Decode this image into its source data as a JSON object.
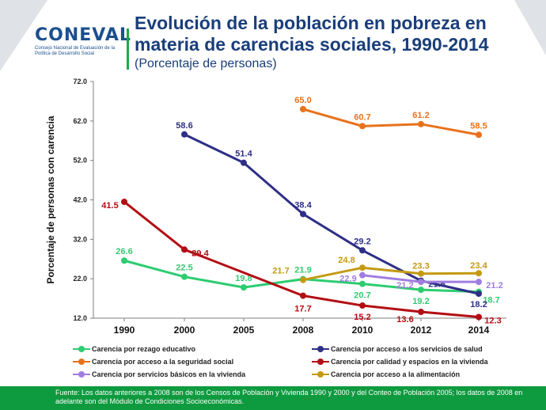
{
  "header": {
    "logo_text": "CONEVAL",
    "logo_subtitle": "Consejo Nacional de Evaluación de la Política de Desarrollo Social",
    "title": "Evolución de la población en pobreza en materia de carencias sociales, 1990-2014",
    "subtitle": "(Porcentaje de personas)"
  },
  "chart_data": {
    "type": "line",
    "title": "Evolución de la población en pobreza en materia de carencias sociales, 1990-2014",
    "subtitle": "(Porcentaje de personas)",
    "xlabel": "",
    "ylabel": "Porcentaje de personas con carencia",
    "categories": [
      "1990",
      "2000",
      "2005",
      "2008",
      "2010",
      "2012",
      "2014"
    ],
    "ylim": [
      12.0,
      72.0
    ],
    "yticks": [
      "12.0",
      "22.0",
      "32.0",
      "42.0",
      "52.0",
      "62.0",
      "72.0"
    ],
    "grid": false,
    "legend_position": "bottom",
    "series": [
      {
        "name": "Carencia por rezago educativo",
        "color": "#2ecc71",
        "values": [
          26.6,
          22.5,
          19.8,
          21.9,
          20.7,
          19.2,
          18.7
        ],
        "labels": [
          "26.6",
          "22.5",
          "19.8",
          "21.9",
          "20.7",
          "19.2",
          "18.7"
        ]
      },
      {
        "name": "Carencia por acceso a los servicios de salud",
        "color": "#2e2f86",
        "values": [
          null,
          58.6,
          51.4,
          38.4,
          29.2,
          21.5,
          18.2
        ],
        "labels": [
          null,
          "58.6",
          "51.4",
          "38.4",
          "29.2",
          "21.5",
          "18.2"
        ]
      },
      {
        "name": "Carencia por acceso a la seguridad social",
        "color": "#e8721c",
        "values": [
          null,
          null,
          null,
          65.0,
          60.7,
          61.2,
          58.5
        ],
        "labels": [
          null,
          null,
          null,
          "65.0",
          "60.7",
          "61.2",
          "58.5"
        ]
      },
      {
        "name": "Carencia por calidad y espacios en la vivienda",
        "color": "#b30d14",
        "values": [
          41.5,
          29.4,
          null,
          17.7,
          15.2,
          13.6,
          12.3
        ],
        "labels": [
          "41.5",
          "29.4",
          null,
          "17.7",
          "15.2",
          "13.6",
          "12.3"
        ]
      },
      {
        "name": "Carencia por servicios básicos en la vivienda",
        "color": "#a07de0",
        "values": [
          null,
          null,
          null,
          null,
          22.9,
          21.2,
          21.2
        ],
        "labels": [
          null,
          null,
          null,
          null,
          "22.9",
          "21.2",
          "21.2"
        ]
      },
      {
        "name": "Carencia por acceso a la alimentación",
        "color": "#c49a12",
        "values": [
          null,
          null,
          null,
          21.7,
          24.8,
          23.3,
          23.4
        ],
        "labels": [
          null,
          null,
          null,
          "21.7",
          "24.8",
          "23.3",
          "23.4"
        ]
      }
    ]
  },
  "footer": {
    "source": "Fuente: Los datos anteriores a 2008 son de los Censos de Población y Vivienda 1990 y 2000 y del Conteo de Población 2005; los datos de 2008 en adelante son del Módulo de Condiciones Socioeconómicas."
  }
}
